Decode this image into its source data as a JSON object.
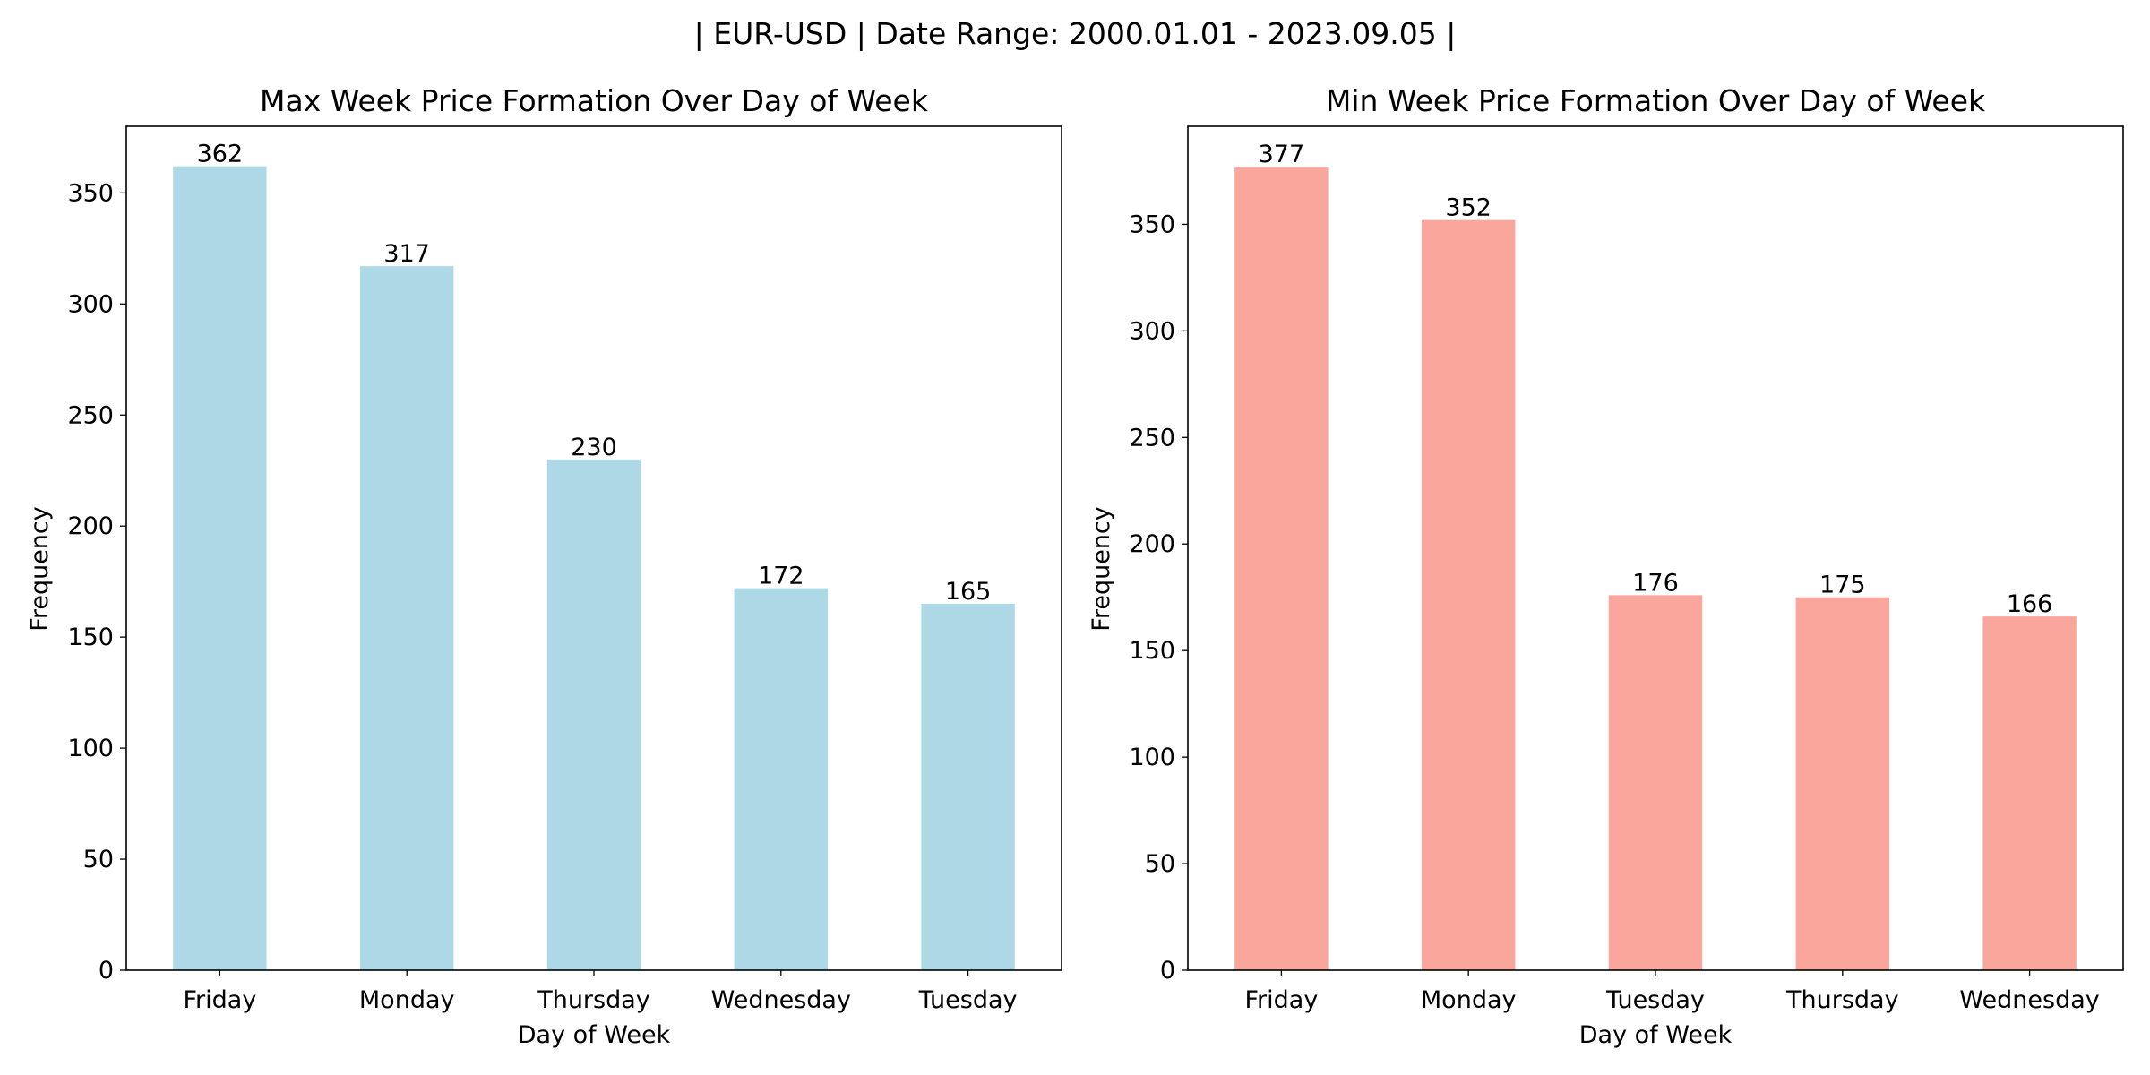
{
  "figure": {
    "suptitle": "| EUR-USD | Date Range: 2000.01.01 - 2023.09.05 |"
  },
  "chart_data": [
    {
      "type": "bar",
      "title": "Max Week Price Formation Over Day of Week",
      "xlabel": "Day of Week",
      "ylabel": "Frequency",
      "categories": [
        "Friday",
        "Monday",
        "Thursday",
        "Wednesday",
        "Tuesday"
      ],
      "values": [
        362,
        317,
        230,
        172,
        165
      ],
      "ylim": [
        0,
        380
      ],
      "yticks": [
        0,
        50,
        100,
        150,
        200,
        250,
        300,
        350
      ],
      "bar_color": "#add8e6",
      "grid": false,
      "legend": "none"
    },
    {
      "type": "bar",
      "title": "Min Week Price Formation Over Day of Week",
      "xlabel": "Day of Week",
      "ylabel": "Frequency",
      "categories": [
        "Friday",
        "Monday",
        "Tuesday",
        "Thursday",
        "Wednesday"
      ],
      "values": [
        377,
        352,
        176,
        175,
        166
      ],
      "ylim": [
        0,
        396
      ],
      "yticks": [
        0,
        50,
        100,
        150,
        200,
        250,
        300,
        350
      ],
      "bar_color": "#fa8072",
      "bar_alpha": 0.7,
      "grid": false,
      "legend": "none"
    }
  ]
}
